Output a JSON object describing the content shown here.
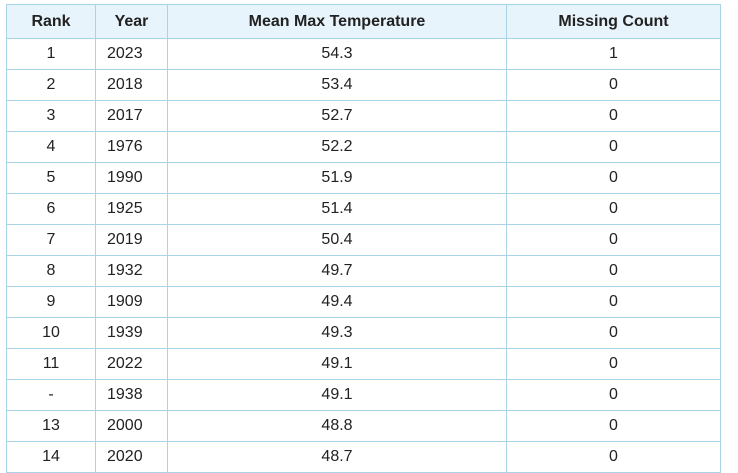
{
  "table": {
    "header": [
      "Rank",
      "Year",
      "Mean Max Temperature",
      "Missing Count"
    ],
    "rows": [
      [
        "1",
        "2023",
        "54.3",
        "1"
      ],
      [
        "2",
        "2018",
        "53.4",
        "0"
      ],
      [
        "3",
        "2017",
        "52.7",
        "0"
      ],
      [
        "4",
        "1976",
        "52.2",
        "0"
      ],
      [
        "5",
        "1990",
        "51.9",
        "0"
      ],
      [
        "6",
        "1925",
        "51.4",
        "0"
      ],
      [
        "7",
        "2019",
        "50.4",
        "0"
      ],
      [
        "8",
        "1932",
        "49.7",
        "0"
      ],
      [
        "9",
        "1909",
        "49.4",
        "0"
      ],
      [
        "10",
        "1939",
        "49.3",
        "0"
      ],
      [
        "11",
        "2022",
        "49.1",
        "0"
      ],
      [
        "-",
        "1938",
        "49.1",
        "0"
      ],
      [
        "13",
        "2000",
        "48.8",
        "0"
      ],
      [
        "14",
        "2020",
        "48.7",
        "0"
      ]
    ]
  }
}
